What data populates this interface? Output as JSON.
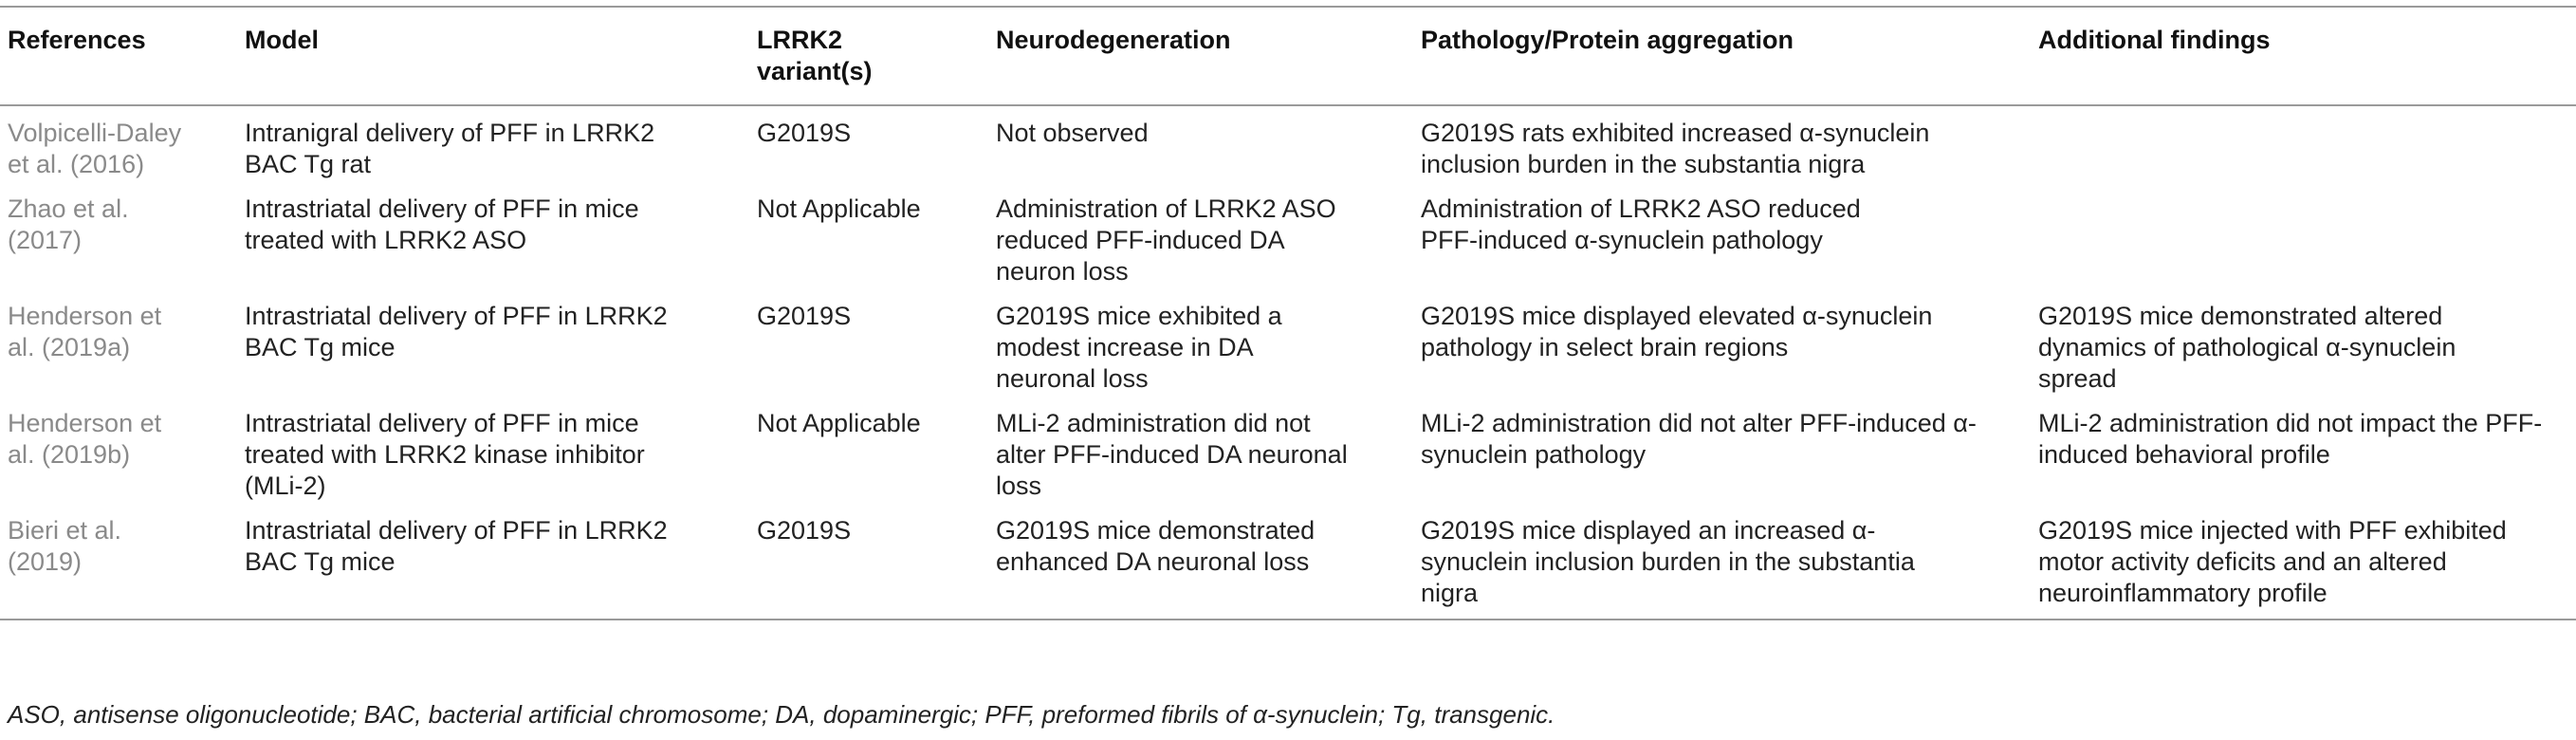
{
  "table": {
    "headers": [
      "References",
      "Model",
      "LRRK2 variant(s)",
      "Neurodegeneration",
      "Pathology/Protein aggregation",
      "Additional findings"
    ],
    "rows": [
      {
        "reference": "Volpicelli-Daley et al. (2016)",
        "model": "Intranigral delivery of PFF in LRRK2 BAC Tg rat",
        "variant": "G2019S",
        "neurodegeneration": "Not observed",
        "pathology": "G2019S rats exhibited increased α-synuclein inclusion burden in the substantia nigra",
        "additional": ""
      },
      {
        "reference": "Zhao et al. (2017)",
        "model": "Intrastriatal delivery of PFF in mice treated with LRRK2 ASO",
        "variant": "Not Applicable",
        "neurodegeneration": "Administration of LRRK2 ASO reduced PFF-induced DA neuron loss",
        "pathology": "Administration of LRRK2 ASO reduced PFF-induced α-synuclein pathology",
        "additional": ""
      },
      {
        "reference": "Henderson et al. (2019a)",
        "model": "Intrastriatal delivery of PFF in LRRK2 BAC Tg mice",
        "variant": "G2019S",
        "neurodegeneration": "G2019S mice exhibited a modest increase in DA neuronal loss",
        "pathology": "G2019S mice displayed elevated α-synuclein pathology in select brain regions",
        "additional": "G2019S mice demonstrated altered dynamics of pathological α-synuclein spread"
      },
      {
        "reference": "Henderson et al. (2019b)",
        "model": "Intrastriatal delivery of PFF in mice treated with LRRK2 kinase inhibitor (MLi-2)",
        "variant": "Not Applicable",
        "neurodegeneration": "MLi-2 administration did not alter PFF-induced DA neuronal loss",
        "pathology": "MLi-2 administration did not alter PFF-induced α-synuclein pathology",
        "additional": "MLi-2 administration did not impact the PFF-induced behavioral profile"
      },
      {
        "reference": "Bieri et al. (2019)",
        "model": "Intrastriatal delivery of PFF in LRRK2 BAC Tg mice",
        "variant": "G2019S",
        "neurodegeneration": "G2019S mice demonstrated enhanced DA neuronal loss",
        "pathology": "G2019S mice displayed an increased α-synuclein inclusion burden in the substantia nigra",
        "additional": "G2019S mice injected with PFF exhibited motor activity deficits and an altered neuroinflammatory profile"
      }
    ]
  },
  "footnote": "ASO, antisense oligonucleotide; BAC, bacterial artificial chromosome; DA, dopaminergic; PFF, preformed fibrils of α-synuclein; Tg, transgenic."
}
